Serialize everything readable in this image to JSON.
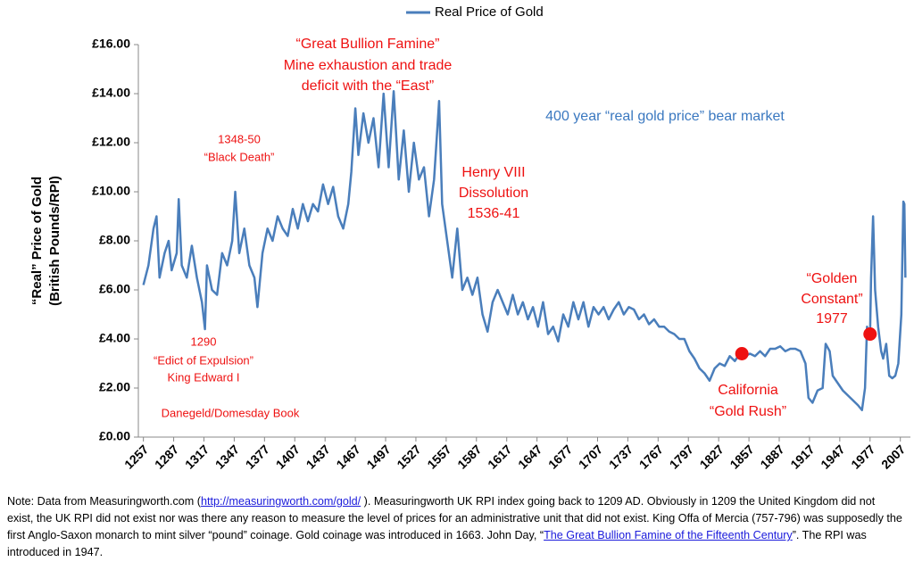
{
  "chart_data": {
    "type": "line",
    "legend": "top",
    "series": [
      {
        "name": "Real Price of Gold",
        "color": "#4a7ebb",
        "values": [
          6.2,
          7.0,
          8.5,
          9.0,
          6.5,
          7.5,
          8.0,
          6.8,
          7.5,
          9.7,
          7.0,
          6.5,
          7.8,
          6.5,
          5.5,
          4.4,
          7.0,
          6.0,
          5.8,
          7.5,
          7.0,
          8.0,
          10.0,
          7.5,
          8.5,
          7.0,
          6.5,
          5.3,
          7.5,
          8.5,
          8.0,
          9.0,
          8.5,
          8.2,
          9.3,
          8.5,
          9.5,
          8.8,
          9.5,
          9.2,
          10.3,
          9.5,
          10.2,
          9.0,
          8.5,
          9.5,
          10.8,
          13.4,
          11.5,
          13.2,
          12.0,
          13.0,
          11.0,
          14.0,
          11.0,
          14.1,
          10.5,
          12.5,
          10.0,
          12.0,
          10.5,
          11.0,
          9.0,
          10.5,
          13.7,
          9.5,
          8.0,
          6.5,
          8.5,
          6.0,
          6.5,
          5.8,
          6.5,
          5.0,
          4.3,
          5.5,
          6.0,
          5.5,
          5.0,
          5.8,
          5.0,
          5.5,
          4.8,
          5.3,
          4.5,
          5.5,
          4.2,
          4.5,
          3.9,
          5.0,
          4.5,
          5.5,
          4.8,
          5.5,
          4.5,
          5.3,
          5.0,
          5.3,
          4.8,
          5.2,
          5.5,
          5.0,
          5.3,
          5.2,
          4.8,
          5.0,
          4.6,
          4.8,
          4.5,
          4.5,
          4.3,
          4.2,
          4.0,
          4.0,
          3.5,
          3.2,
          2.8,
          2.6,
          2.3,
          2.8,
          3.0,
          2.9,
          3.3,
          3.1,
          3.4,
          3.3,
          3.4,
          3.3,
          3.5,
          3.3,
          3.6,
          3.6,
          3.7,
          3.5,
          3.6,
          3.6,
          3.5,
          3.0,
          1.6,
          1.4,
          1.9,
          2.0,
          3.8,
          3.5,
          2.5,
          2.2,
          1.9,
          1.7,
          1.5,
          1.3,
          1.1,
          2.0,
          4.5,
          4.1,
          4.2,
          6.5,
          9.0,
          6.0,
          4.5,
          3.5,
          3.2,
          3.8,
          2.5,
          2.4,
          2.5,
          3.0,
          5.0,
          9.6,
          9.5,
          6.5
        ]
      }
    ],
    "x": [
      1257,
      1262,
      1267,
      1270,
      1273,
      1278,
      1282,
      1285,
      1290,
      1292,
      1295,
      1300,
      1305,
      1310,
      1315,
      1318,
      1320,
      1325,
      1330,
      1335,
      1340,
      1345,
      1348,
      1352,
      1357,
      1362,
      1367,
      1370,
      1375,
      1380,
      1385,
      1390,
      1395,
      1400,
      1405,
      1410,
      1415,
      1420,
      1425,
      1430,
      1435,
      1440,
      1445,
      1450,
      1455,
      1460,
      1463,
      1467,
      1470,
      1475,
      1480,
      1485,
      1490,
      1495,
      1500,
      1505,
      1510,
      1515,
      1520,
      1525,
      1530,
      1535,
      1540,
      1545,
      1550,
      1553,
      1558,
      1563,
      1568,
      1573,
      1578,
      1583,
      1588,
      1593,
      1598,
      1603,
      1608,
      1613,
      1618,
      1623,
      1628,
      1633,
      1638,
      1643,
      1648,
      1653,
      1658,
      1663,
      1668,
      1673,
      1678,
      1683,
      1688,
      1693,
      1698,
      1703,
      1708,
      1713,
      1718,
      1723,
      1728,
      1733,
      1738,
      1743,
      1748,
      1753,
      1758,
      1763,
      1768,
      1773,
      1778,
      1783,
      1788,
      1793,
      1798,
      1803,
      1808,
      1813,
      1818,
      1823,
      1828,
      1833,
      1838,
      1843,
      1848,
      1853,
      1858,
      1863,
      1868,
      1873,
      1878,
      1883,
      1888,
      1893,
      1898,
      1903,
      1908,
      1913,
      1916,
      1920,
      1925,
      1930,
      1933,
      1937,
      1940,
      1945,
      1950,
      1955,
      1960,
      1965,
      1969,
      1972,
      1974,
      1976,
      1977,
      1978,
      1980,
      1982,
      1985,
      1988,
      1990,
      1993,
      1996,
      1999,
      2002,
      2005,
      2008,
      2010,
      2011,
      2012
    ],
    "markers": {
      "color": "#ee1111",
      "x": [
        1850,
        1977
      ],
      "values": [
        3.4,
        4.2
      ]
    },
    "xlim": [
      1252,
      2017
    ],
    "xticks": [
      1257,
      1287,
      1317,
      1347,
      1377,
      1407,
      1437,
      1467,
      1497,
      1527,
      1557,
      1587,
      1617,
      1647,
      1677,
      1707,
      1737,
      1767,
      1797,
      1827,
      1857,
      1887,
      1917,
      1947,
      1977,
      2007
    ],
    "ylim": [
      0,
      16
    ],
    "yticks": [
      {
        "value": 0,
        "label": "£0.00"
      },
      {
        "value": 2,
        "label": "£2.00"
      },
      {
        "value": 4,
        "label": "£4.00"
      },
      {
        "value": 6,
        "label": "£6.00"
      },
      {
        "value": 8,
        "label": "£8.00"
      },
      {
        "value": 10,
        "label": "£10.00"
      },
      {
        "value": 12,
        "label": "£12.00"
      },
      {
        "value": 14,
        "label": "£14.00"
      },
      {
        "value": 16,
        "label": "£16.00"
      }
    ],
    "y_label": [
      "“Real” Price of Gold",
      "(British Pounds/RPI)"
    ],
    "annotations": [
      [
        "“Great Bullion Famine”",
        "Mine exhaustion and trade",
        "deficit with the “East”"
      ],
      [
        "400 year “real gold price” bear market"
      ],
      [
        "1348-50",
        "“Black Death”"
      ],
      [
        "Henry VIII",
        "Dissolution",
        "1536-41"
      ],
      [
        "1290",
        "“Edict of Expulsion”",
        "King Edward I"
      ],
      [
        "Danegeld/Domesday Book"
      ],
      [
        "California",
        "“Gold Rush”"
      ],
      [
        "“Golden",
        "Constant”",
        "1977"
      ]
    ]
  },
  "note": [
    "Note: Data from Measuringworth.com (",
    "http://measuringworth.com/gold/",
    " ). Measuringworth UK RPI index going back to  1209 AD. Obviously in 1209 the United Kingdom did not exist, the UK RPI did not exist nor was there any reason to measure the level of prices for an administrative unit that did not exist. King Offa of Mercia (757-796) was supposedly the first Anglo-Saxon monarch to mint silver “pound” coinage. Gold coinage was introduced in 1663. John Day, “",
    "The Great Bullion Famine of the Fifteenth Century",
    "”. The RPI was introduced in 1947."
  ]
}
